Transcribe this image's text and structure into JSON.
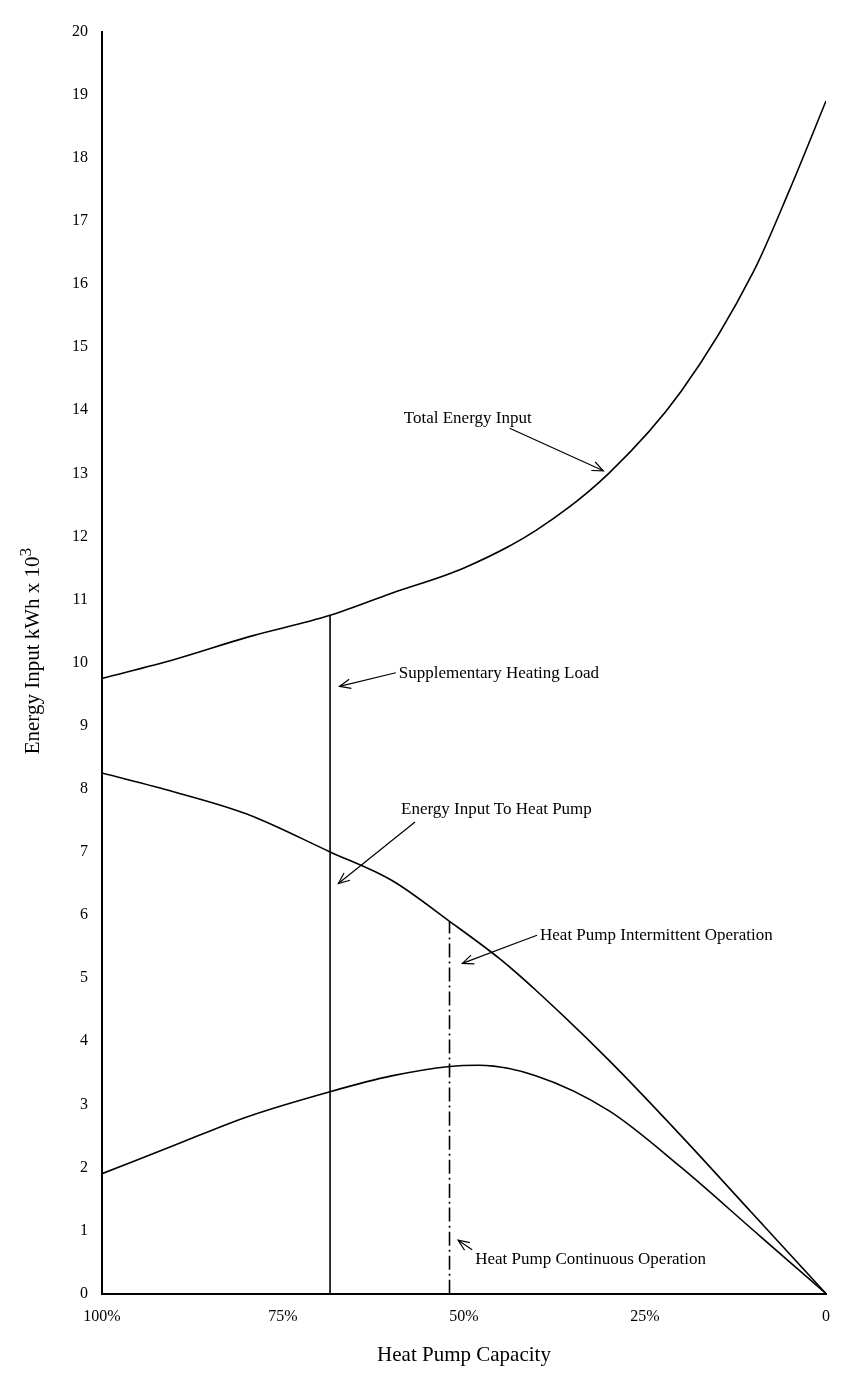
{
  "chart_data": {
    "type": "line",
    "xlabel": "Heat Pump Capacity",
    "ylabel": "Energy Input  kWh x 10$^{3}$",
    "xlim": [
      100,
      0
    ],
    "xticks": [
      {
        "value": 100,
        "label": "100%"
      },
      {
        "value": 75,
        "label": "75%"
      },
      {
        "value": 50,
        "label": "50%"
      },
      {
        "value": 25,
        "label": "25%"
      },
      0
    ],
    "ylim": [
      0,
      20
    ],
    "yticks": [
      0,
      1,
      2,
      3,
      4,
      5,
      6,
      7,
      8,
      9,
      10,
      11,
      12,
      13,
      14,
      15,
      16,
      17,
      18,
      19,
      20
    ],
    "grid": false,
    "legend": false,
    "marker": "none",
    "series": [
      {
        "color": "#000000",
        "x": [
          100,
          90,
          80,
          68.5,
          60,
          50,
          40,
          30,
          20,
          10,
          5,
          0
        ],
        "values": [
          9.75,
          10.05,
          10.4,
          10.75,
          11.1,
          11.5,
          12.1,
          13.0,
          14.3,
          16.2,
          17.5,
          18.9
        ]
      },
      {
        "color": "#000000",
        "x": [
          100,
          90,
          80,
          68.5,
          60,
          52,
          45,
          40,
          30,
          20,
          10,
          0
        ],
        "values": [
          8.25,
          7.95,
          7.6,
          7.0,
          6.55,
          5.9,
          5.3,
          4.8,
          3.7,
          2.5,
          1.25,
          0
        ]
      },
      {
        "color": "#000000",
        "x": [
          100,
          90,
          80,
          68.5,
          60,
          52,
          48,
          40,
          30,
          20,
          10,
          0
        ],
        "values": [
          1.9,
          2.35,
          2.8,
          3.2,
          3.45,
          3.6,
          3.62,
          3.45,
          2.9,
          2.0,
          1.0,
          0
        ]
      },
      {
        "color": "#000000",
        "x": [
          68.5,
          68.5
        ],
        "values": [
          0,
          10.75
        ]
      },
      {
        "color": "#000000",
        "x": [
          52,
          52
        ],
        "values": [
          0,
          5.9
        ],
        "line_style": "dashed"
      }
    ],
    "annotations": [
      {
        "text": "Total Energy Input",
        "x": 30,
        "y": 13.0
      },
      "Supplementary Heating Load",
      "Energy Input To Heat Pump",
      "Heat Pump Intermittent Operation",
      {
        "text": "Heat Pump Continuous Operation",
        "x": 51.5,
        "y": 0.9
      }
    ]
  }
}
